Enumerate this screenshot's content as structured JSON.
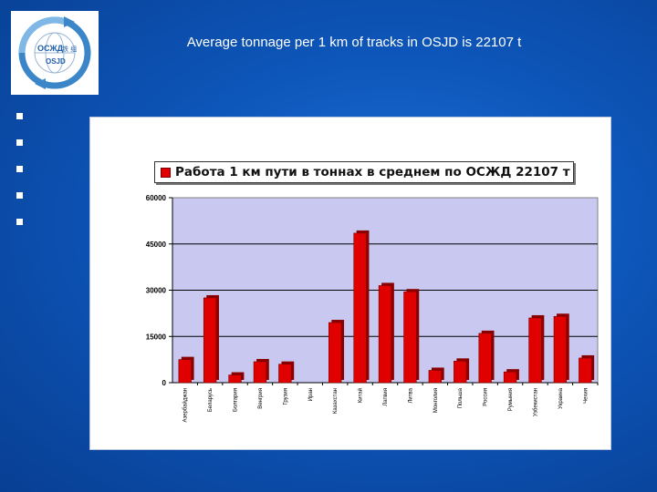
{
  "logo": {
    "line1": "OCЖД",
    "line2": "OSJD",
    "glyphs": "铁 组"
  },
  "slide": {
    "title": "Average tonnage per 1 km of tracks in OSJD is 22107 t"
  },
  "bullets": [
    "",
    "",
    "",
    "",
    ""
  ],
  "colors": {
    "bar": "#e00000",
    "bar_dark": "#8a0000",
    "plot_bg": "#c8c8f0",
    "background": "#0d55b8"
  },
  "chart_data": {
    "type": "bar",
    "title": "",
    "xlabel": "",
    "ylabel": "",
    "ylim": [
      0,
      60000
    ],
    "yticks": [
      "0",
      "15000",
      "30000",
      "45000",
      "60000"
    ],
    "grid": true,
    "legend_position": "top",
    "categories": [
      "Азербайджан",
      "Беларусь",
      "Болгария",
      "Венгрия",
      "Грузия",
      "Иран",
      "Казахстан",
      "Китай",
      "Латвия",
      "Литва",
      "Монголия",
      "Польша",
      "Россия",
      "Румыния",
      "Узбекистан",
      "Украина",
      "Чехия"
    ],
    "series": [
      {
        "name": "Работа 1 км пути в тоннах в среднем по ОСЖД 22107 т",
        "values": [
          7500,
          27500,
          2500,
          6800,
          6000,
          0,
          19500,
          48500,
          31500,
          29500,
          4000,
          7000,
          16000,
          3500,
          21000,
          21500,
          8000
        ]
      }
    ]
  }
}
